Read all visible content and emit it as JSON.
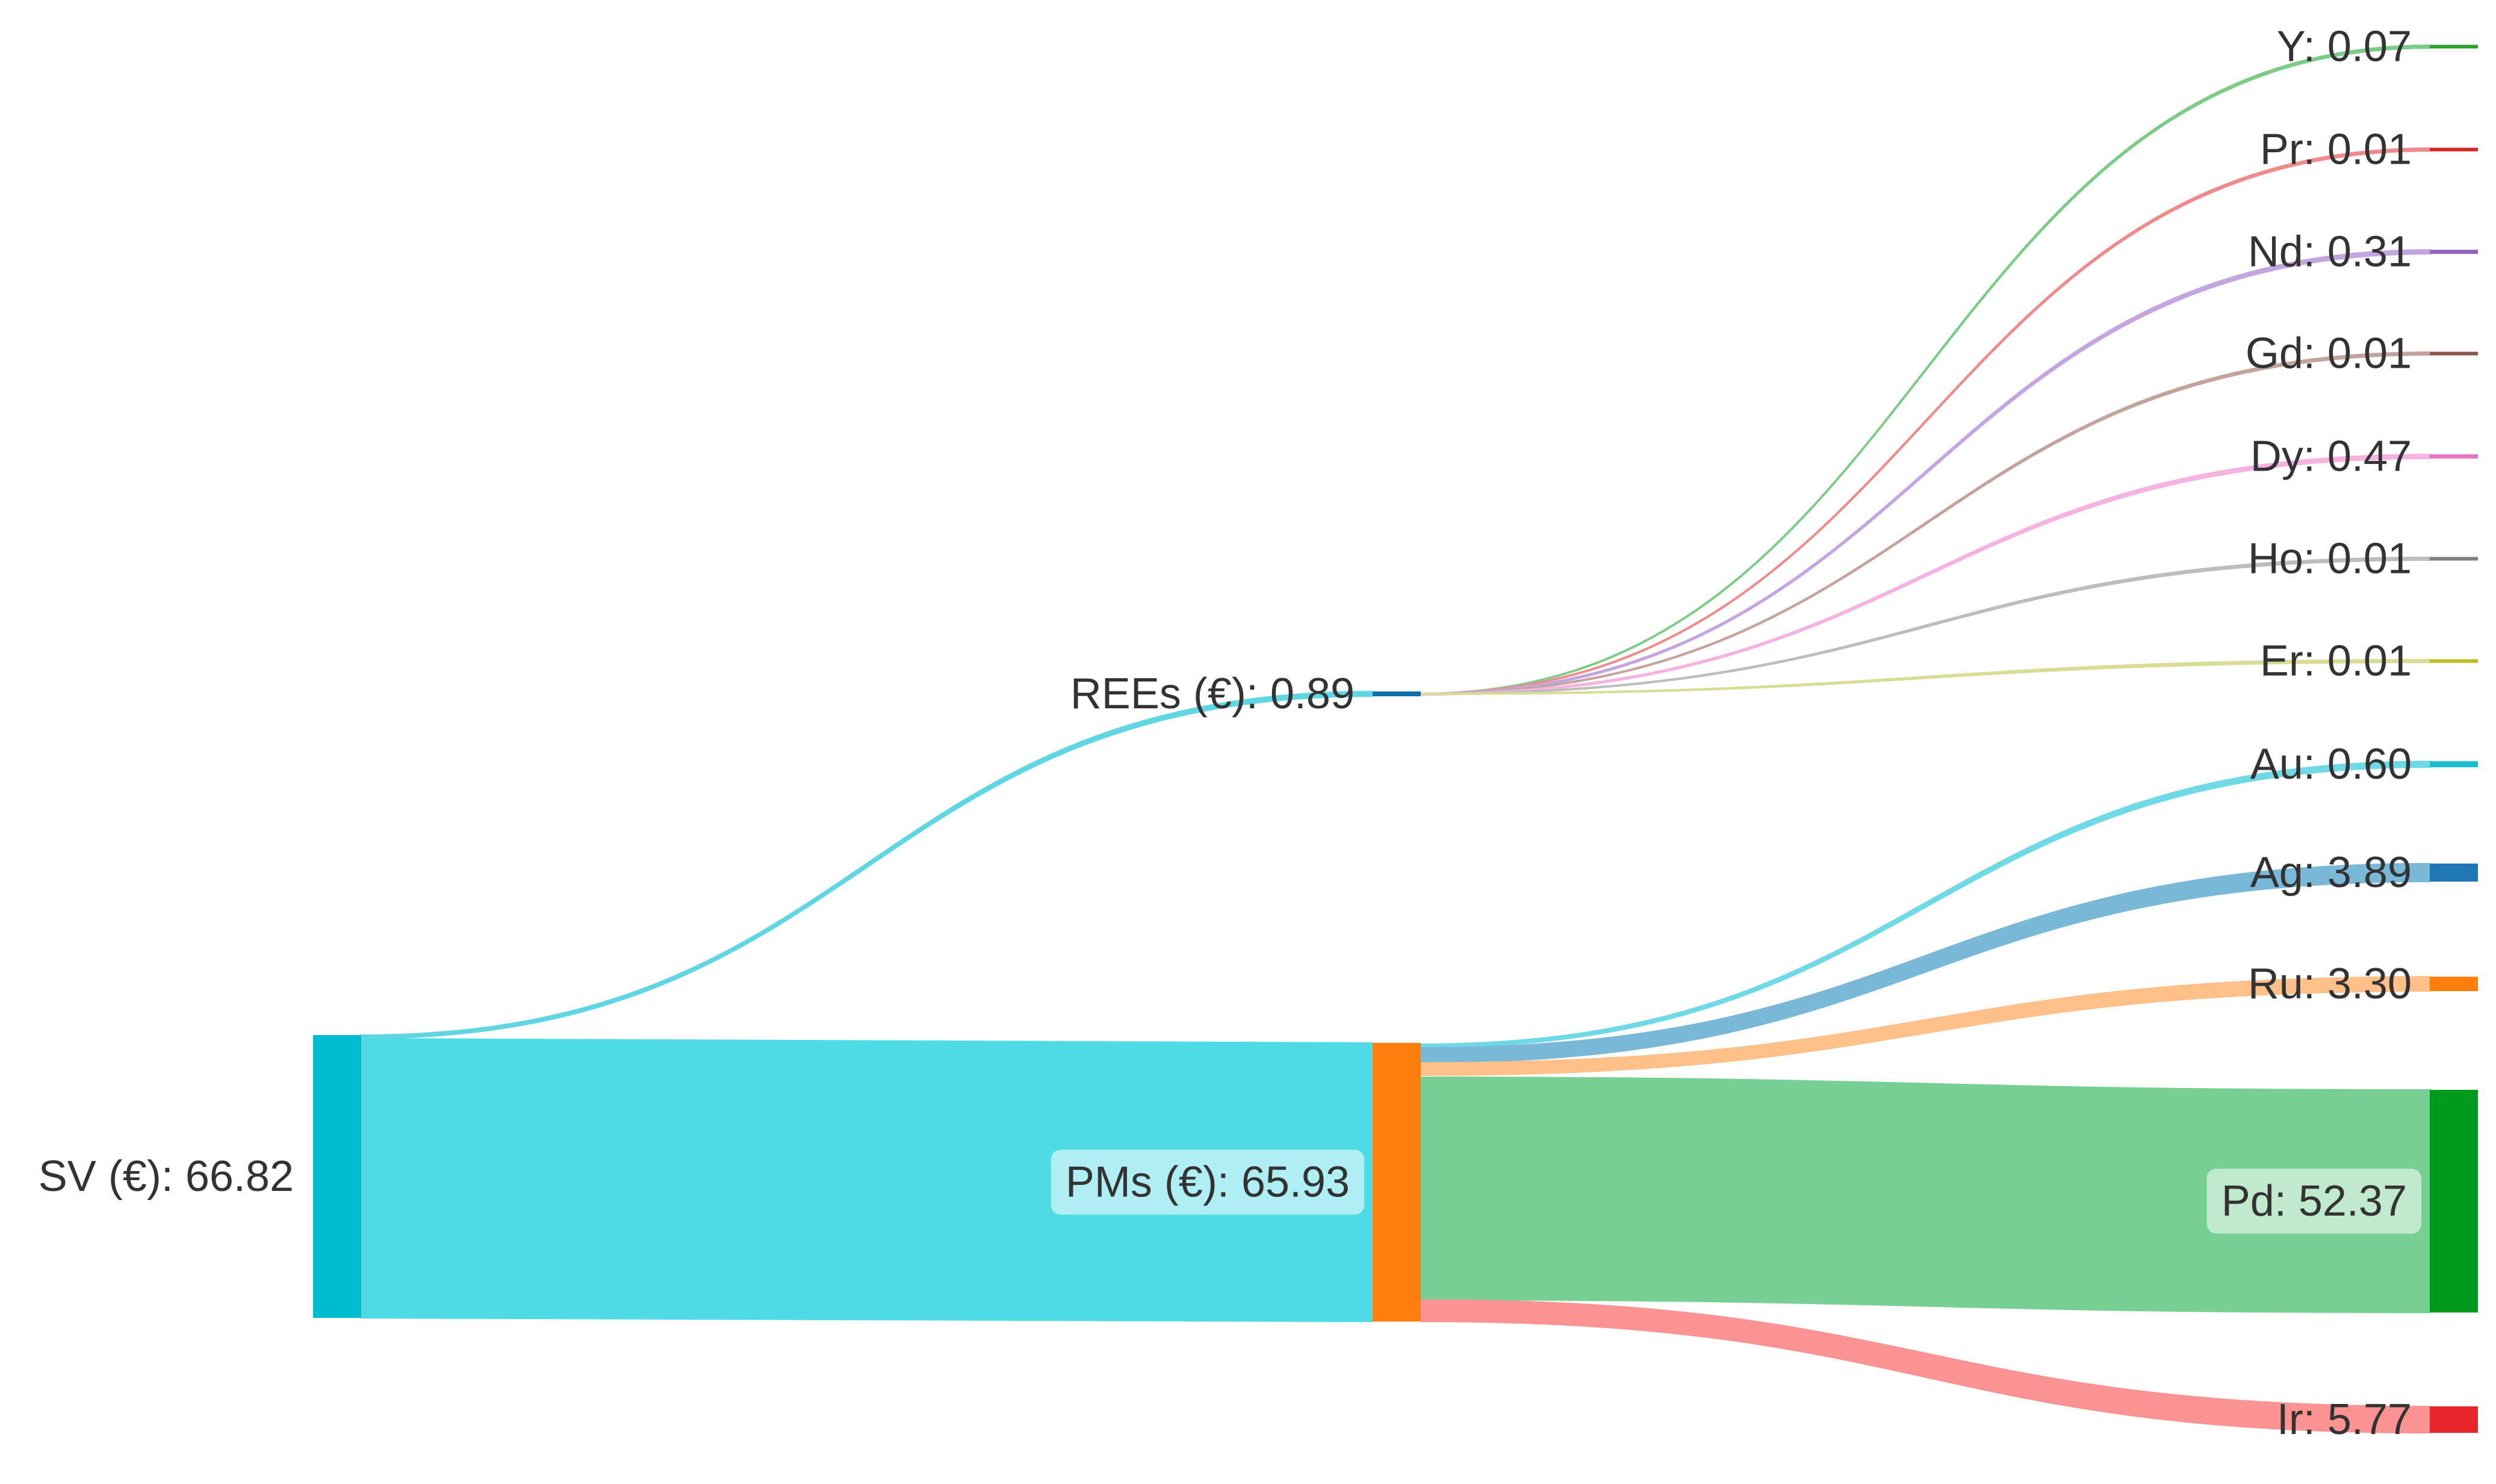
{
  "diagram": {
    "type": "sankey",
    "nodes": [
      {
        "id": "sv",
        "label": "SV (€): 66.82",
        "value": 66.82,
        "color": "#00bcd0"
      },
      {
        "id": "rees",
        "label": "REEs (€): 0.89",
        "value": 0.89,
        "color": "#0b6fa8"
      },
      {
        "id": "pms",
        "label": "PMs (€): 65.93",
        "value": 65.93,
        "color": "#ff7f0e"
      },
      {
        "id": "y",
        "label": "Y: 0.07",
        "value": 0.07,
        "color": "#2ca02c"
      },
      {
        "id": "pr",
        "label": "Pr: 0.01",
        "value": 0.01,
        "color": "#d62728"
      },
      {
        "id": "nd",
        "label": "Nd: 0.31",
        "value": 0.31,
        "color": "#9467bd"
      },
      {
        "id": "gd",
        "label": "Gd: 0.01",
        "value": 0.01,
        "color": "#8c564b"
      },
      {
        "id": "dy",
        "label": "Dy: 0.47",
        "value": 0.47,
        "color": "#e377c2"
      },
      {
        "id": "ho",
        "label": "Ho: 0.01",
        "value": 0.01,
        "color": "#7f7f7f"
      },
      {
        "id": "er",
        "label": "Er: 0.01",
        "value": 0.01,
        "color": "#bcbd22"
      },
      {
        "id": "au",
        "label": "Au: 0.60",
        "value": 0.6,
        "color": "#17becf"
      },
      {
        "id": "ag",
        "label": "Ag: 3.89",
        "value": 3.89,
        "color": "#1f77b4"
      },
      {
        "id": "ru",
        "label": "Ru: 3.30",
        "value": 3.3,
        "color": "#ff7f0e"
      },
      {
        "id": "pd",
        "label": "Pd: 52.37",
        "value": 52.37,
        "color": "#009a1f"
      },
      {
        "id": "ir",
        "label": "Ir: 5.77",
        "value": 5.77,
        "color": "#e8252b"
      }
    ],
    "links": [
      {
        "source": "sv",
        "target": "rees",
        "value": 0.89,
        "color": "#5fd6e2"
      },
      {
        "source": "sv",
        "target": "pms",
        "value": 65.93,
        "color": "#4edbe6"
      },
      {
        "source": "rees",
        "target": "y",
        "value": 0.07,
        "color": "#7ccc88"
      },
      {
        "source": "rees",
        "target": "pr",
        "value": 0.01,
        "color": "#f08b8b"
      },
      {
        "source": "rees",
        "target": "nd",
        "value": 0.31,
        "color": "#c3a6e0"
      },
      {
        "source": "rees",
        "target": "gd",
        "value": 0.01,
        "color": "#c2a49c"
      },
      {
        "source": "rees",
        "target": "dy",
        "value": 0.47,
        "color": "#f4b3e0"
      },
      {
        "source": "rees",
        "target": "ho",
        "value": 0.01,
        "color": "#bdbdbd"
      },
      {
        "source": "rees",
        "target": "er",
        "value": 0.01,
        "color": "#d9dc94"
      },
      {
        "source": "pms",
        "target": "au",
        "value": 0.6,
        "color": "#6fd9e6"
      },
      {
        "source": "pms",
        "target": "ag",
        "value": 3.89,
        "color": "#7ab8d8"
      },
      {
        "source": "pms",
        "target": "ru",
        "value": 3.3,
        "color": "#ffc08a"
      },
      {
        "source": "pms",
        "target": "pd",
        "value": 52.37,
        "color": "#77cf93"
      },
      {
        "source": "pms",
        "target": "ir",
        "value": 5.77,
        "color": "#fb9393"
      }
    ]
  }
}
